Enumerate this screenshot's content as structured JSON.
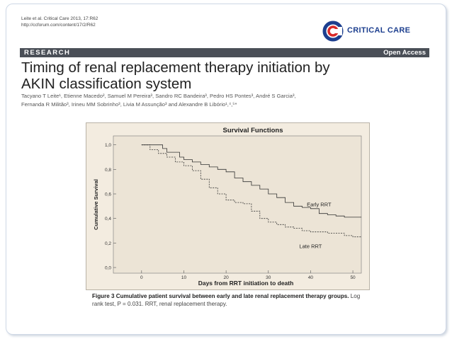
{
  "header": {
    "citation_journal": "Leite et al. Critical Care 2013, 17:R62",
    "citation_url": "http://ccforum.com/content/17/2/R62",
    "logo_text": "CRITICAL CARE"
  },
  "band": {
    "left": "RESEARCH",
    "right": "Open Access"
  },
  "title_line1": "Timing of renal replacement therapy initiation by",
  "title_line2": "AKIN classification system",
  "authors_line1": "Tacyano T Leite¹, Etienne Macedo², Samuel M Pereira³, Sandro RC Bandeira³, Pedro HS Pontes³, André S Garcia³,",
  "authors_line2": "Fernanda R Militão³, Irineu MM Sobrinho³, Livia M Assunção³ and Alexandre B Libório¹,⁴,⁵*",
  "caption": {
    "bold": "Figure 3 Cumulative patient survival between early and late renal replacement therapy groups.",
    "rest": " Log rank test, P = 0.031. RRT, renal replacement therapy."
  },
  "colors": {
    "accent": "#1d3f8f",
    "logo_red": "#d92a2a",
    "band": "#4a4f57",
    "figure_bg": "#f3ece0"
  },
  "chart_data": {
    "type": "line",
    "title": "Survival Functions",
    "xlabel": "Days from RRT initiation to death",
    "ylabel": "Cumulative Survival",
    "xlim": [
      -5,
      52
    ],
    "ylim": [
      0,
      1.05
    ],
    "x_ticks": [
      0,
      10,
      20,
      30,
      40,
      50
    ],
    "y_ticks": [
      "0,0",
      "0,2",
      "0,4",
      "0,6",
      "0,8",
      "1,0"
    ],
    "y_tick_values": [
      0,
      0.2,
      0.4,
      0.6,
      0.8,
      1.0
    ],
    "grid": false,
    "series": [
      {
        "name": "Early RRT",
        "style": "solid",
        "x": [
          0,
          4,
          5,
          6,
          9,
          10,
          12,
          14,
          16,
          18,
          20,
          22,
          24,
          26,
          28,
          30,
          32,
          34,
          36,
          38,
          40,
          42,
          44,
          46,
          48,
          50,
          52
        ],
        "y": [
          1.0,
          1.0,
          0.97,
          0.94,
          0.9,
          0.88,
          0.86,
          0.84,
          0.82,
          0.8,
          0.78,
          0.73,
          0.7,
          0.67,
          0.64,
          0.6,
          0.57,
          0.53,
          0.5,
          0.49,
          0.48,
          0.44,
          0.43,
          0.42,
          0.41,
          0.41,
          0.41
        ]
      },
      {
        "name": "Late RRT",
        "style": "dashed",
        "x": [
          0,
          2,
          4,
          6,
          8,
          10,
          12,
          14,
          16,
          18,
          20,
          22,
          24,
          26,
          28,
          30,
          32,
          34,
          36,
          38,
          40,
          44,
          48,
          50,
          52
        ],
        "y": [
          1.0,
          0.96,
          0.93,
          0.9,
          0.86,
          0.83,
          0.79,
          0.72,
          0.65,
          0.6,
          0.55,
          0.53,
          0.52,
          0.46,
          0.4,
          0.37,
          0.35,
          0.33,
          0.32,
          0.3,
          0.29,
          0.28,
          0.26,
          0.25,
          0.25
        ]
      }
    ],
    "annotations": [
      "Early RRT",
      "Late RRT"
    ]
  }
}
